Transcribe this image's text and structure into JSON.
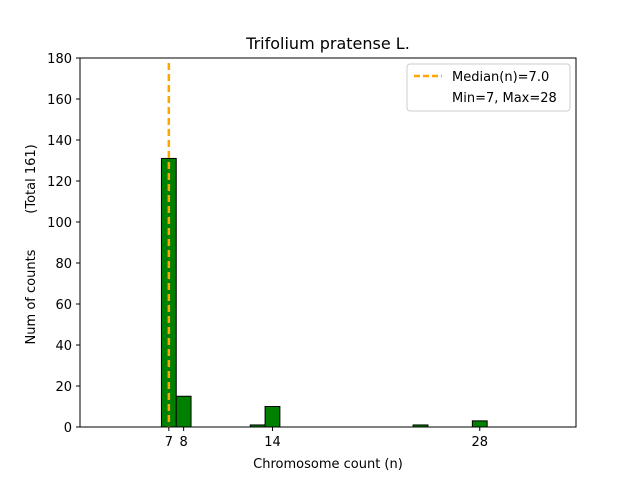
{
  "chart_data": {
    "type": "bar",
    "title": "Trifolium pratense L.",
    "xlabel": "Chromosome count (n)",
    "ylabel": "Num of counts",
    "ylabel_note": "(Total 161)",
    "xlim": [
      1,
      34.5
    ],
    "ylim": [
      0,
      180
    ],
    "yticks": [
      0,
      20,
      40,
      60,
      80,
      100,
      120,
      140,
      160,
      180
    ],
    "xticks": [
      7,
      8,
      14,
      28
    ],
    "bin_width": 1,
    "bars": [
      {
        "x": 7,
        "value": 131
      },
      {
        "x": 8,
        "value": 15
      },
      {
        "x": 13,
        "value": 1
      },
      {
        "x": 14,
        "value": 10
      },
      {
        "x": 24,
        "value": 1
      },
      {
        "x": 28,
        "value": 3
      }
    ],
    "bar_color": "#008000",
    "bar_edge_color": "#000000",
    "median": 7.0,
    "median_color": "#FFA500",
    "legend": {
      "position": "top-right",
      "entries": [
        "Median(n)=7.0",
        "Min=7, Max=28"
      ]
    }
  }
}
